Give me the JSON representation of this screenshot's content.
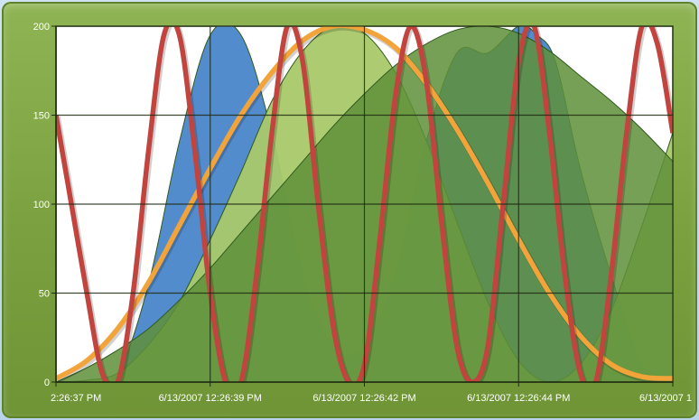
{
  "colors": {
    "frame": "#7aa03f",
    "plot_background": "#ffffff",
    "grid": "#1f2a12",
    "blue_area": "#4a86c9",
    "light_green_area": "#a9c96a",
    "dark_green_area": "#5f8f3a",
    "orange_line": "#f2a43a",
    "red_line": "#c1443e"
  },
  "chart_data": {
    "type": "area",
    "title": "",
    "xlabel": "",
    "ylabel": "",
    "ylim": [
      0,
      200
    ],
    "xlim": [
      0,
      10
    ],
    "grid": true,
    "legend": "none",
    "y_ticks": [
      0,
      50,
      100,
      150,
      200
    ],
    "y_tick_labels": [
      "0",
      "50",
      "100",
      "150",
      "200"
    ],
    "x_ticks": [
      0,
      2.5,
      5,
      7.5,
      10
    ],
    "x_tick_labels": [
      "2:26:37 PM",
      "6/13/2007 12:26:39 PM",
      "6/13/2007 12:26:42 PM",
      "6/13/2007 12:26:44 PM",
      "6/13/2007 1"
    ],
    "series": [
      {
        "kind": "area",
        "color": "#4a86c9",
        "x": [
          0,
          0.5,
          1,
          1.5,
          2,
          2.5,
          3,
          3.5,
          4,
          4.5,
          5,
          5.5,
          6,
          6.5,
          7,
          7.5,
          7.8,
          8.1,
          8.5,
          9,
          9.5,
          10
        ],
        "values": [
          0,
          0,
          5,
          55,
          135,
          195,
          195,
          140,
          60,
          20,
          20,
          60,
          135,
          185,
          185,
          200,
          195,
          180,
          120,
          60,
          10,
          0
        ]
      },
      {
        "kind": "area",
        "color": "#a9c96a",
        "x": [
          0,
          0.5,
          1,
          1.5,
          2,
          2.5,
          3,
          3.5,
          4,
          4.5,
          5,
          5.5,
          6,
          6.5,
          7,
          7.5,
          8,
          8.5,
          9,
          9.5,
          10
        ],
        "values": [
          0,
          1,
          5,
          21,
          45,
          80,
          118,
          158,
          186,
          200,
          196,
          174,
          136,
          90,
          45,
          12,
          0,
          10,
          40,
          88,
          140
        ]
      },
      {
        "kind": "area",
        "color": "#5f8f3a",
        "x": [
          0,
          0.5,
          1,
          1.5,
          2,
          2.5,
          3,
          3.5,
          4,
          4.5,
          5,
          5.5,
          6,
          6.5,
          7,
          7.5,
          8,
          8.5,
          9,
          9.5,
          10
        ],
        "values": [
          0,
          8,
          18,
          30,
          46,
          64,
          84,
          104,
          124,
          144,
          162,
          178,
          190,
          198,
          200,
          196,
          186,
          172,
          158,
          142,
          124
        ]
      },
      {
        "kind": "line",
        "color": "#f2a43a",
        "x": [
          0,
          0.5,
          1,
          1.5,
          2,
          2.5,
          3,
          3.5,
          4,
          4.5,
          5,
          5.5,
          6,
          6.5,
          7,
          7.5,
          8,
          8.5,
          9,
          9.5,
          10
        ],
        "values": [
          2,
          12,
          30,
          56,
          88,
          120,
          150,
          174,
          192,
          200,
          198,
          188,
          168,
          142,
          112,
          80,
          50,
          26,
          10,
          3,
          2
        ]
      },
      {
        "kind": "line",
        "color": "#c1443e",
        "x": [
          0,
          0.25,
          0.5,
          0.75,
          1,
          1.25,
          1.5,
          1.75,
          2,
          2.25,
          2.5,
          2.75,
          3,
          3.25,
          3.5,
          3.75,
          4,
          4.25,
          4.5,
          4.75,
          5,
          5.25,
          5.5,
          5.75,
          6,
          6.25,
          6.5,
          6.75,
          7,
          7.25,
          7.5,
          7.75,
          8,
          8.25,
          8.5,
          8.75,
          9,
          9.25,
          9.5,
          9.75,
          10
        ],
        "values": [
          150,
          100,
          50,
          5,
          0,
          50,
          130,
          195,
          195,
          130,
          50,
          0,
          0,
          60,
          140,
          200,
          180,
          100,
          30,
          0,
          10,
          80,
          160,
          200,
          170,
          90,
          20,
          0,
          20,
          100,
          180,
          200,
          140,
          60,
          5,
          0,
          60,
          140,
          200,
          190,
          140
        ]
      }
    ]
  }
}
